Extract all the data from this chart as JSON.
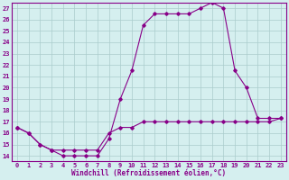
{
  "xlabel": "Windchill (Refroidissement éolien,°C)",
  "ylabel": "",
  "bg_color": "#d5efef",
  "line_color": "#880088",
  "grid_color": "#aacccc",
  "xlim": [
    -0.5,
    23.5
  ],
  "ylim": [
    13.5,
    27.5
  ],
  "x_ticks": [
    0,
    1,
    2,
    3,
    4,
    5,
    6,
    7,
    8,
    9,
    10,
    11,
    12,
    13,
    14,
    15,
    16,
    17,
    18,
    19,
    20,
    21,
    22,
    23
  ],
  "y_ticks": [
    14,
    15,
    16,
    17,
    18,
    19,
    20,
    21,
    22,
    23,
    24,
    25,
    26,
    27
  ],
  "line1_x": [
    0,
    1,
    2,
    3,
    4,
    5,
    6,
    7,
    8,
    9,
    10,
    11,
    12,
    13,
    14,
    15,
    16,
    17,
    18,
    19,
    20,
    21,
    22,
    23
  ],
  "line1_y": [
    16.5,
    16.0,
    15.0,
    14.5,
    14.0,
    14.0,
    14.0,
    14.0,
    15.5,
    19.0,
    21.5,
    25.5,
    26.5,
    26.5,
    26.5,
    26.5,
    27.0,
    27.5,
    27.0,
    21.5,
    20.0,
    17.3,
    17.3,
    17.3
  ],
  "line2_x": [
    0,
    1,
    2,
    3,
    4,
    5,
    6,
    7,
    8,
    9,
    10,
    11,
    12,
    13,
    14,
    15,
    16,
    17,
    18,
    19,
    20,
    21,
    22,
    23
  ],
  "line2_y": [
    16.5,
    16.0,
    15.0,
    14.5,
    14.5,
    14.5,
    14.5,
    14.5,
    16.0,
    16.5,
    16.5,
    17.0,
    17.0,
    17.0,
    17.0,
    17.0,
    17.0,
    17.0,
    17.0,
    17.0,
    17.0,
    17.0,
    17.0,
    17.3
  ],
  "xlabel_fontsize": 5.5,
  "tick_fontsize": 5.0
}
